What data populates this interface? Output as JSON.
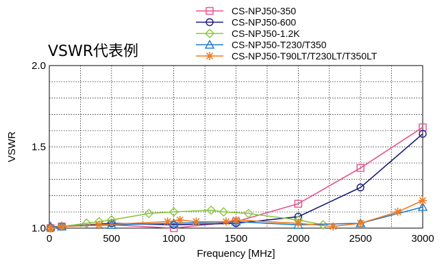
{
  "chart_data": {
    "type": "line",
    "title": "VSWR代表例",
    "xlabel": "Frequency [MHz]",
    "ylabel": "VSWR",
    "xlim": [
      0,
      3000
    ],
    "ylim": [
      1.0,
      2.0
    ],
    "x_ticks": [
      0,
      500,
      1000,
      1500,
      2000,
      2500,
      3000
    ],
    "y_ticks": [
      1.0,
      1.5,
      2.0
    ],
    "x_tick_labels": [
      "0",
      "500",
      "1000",
      "1500",
      "2000",
      "2500",
      "3000"
    ],
    "y_tick_labels": [
      "1.0",
      "1.5",
      "2.0"
    ],
    "grid": true,
    "legend_position": "top-right",
    "series": [
      {
        "name": "CS-NPJ50-350",
        "color": "#e8508a",
        "marker": "square",
        "x": [
          10,
          100,
          500,
          1000,
          1500,
          2000,
          2500,
          3000
        ],
        "y": [
          1.0,
          1.01,
          1.02,
          1.0,
          1.04,
          1.15,
          1.37,
          1.62
        ]
      },
      {
        "name": "CS-NPJ50-600",
        "color": "#1a1a7a",
        "marker": "circle",
        "x": [
          10,
          100,
          500,
          1000,
          1500,
          2000,
          2500,
          3000
        ],
        "y": [
          1.0,
          1.01,
          1.03,
          1.02,
          1.03,
          1.07,
          1.25,
          1.58
        ]
      },
      {
        "name": "CS-NPJ50-1.2K",
        "color": "#8cc63f",
        "marker": "diamond",
        "x": [
          10,
          100,
          300,
          400,
          500,
          800,
          1000,
          1300,
          1400,
          1600,
          2000,
          2200
        ],
        "y": [
          1.0,
          1.01,
          1.03,
          1.04,
          1.05,
          1.09,
          1.1,
          1.11,
          1.1,
          1.09,
          1.05,
          1.02
        ]
      },
      {
        "name": "CS-NPJ50-T230/T350",
        "color": "#1f78c8",
        "marker": "triangle",
        "x": [
          10,
          100,
          500,
          1000,
          1500,
          2000,
          2500,
          3000
        ],
        "y": [
          1.01,
          1.01,
          1.02,
          1.03,
          1.04,
          1.02,
          1.03,
          1.13
        ]
      },
      {
        "name": "CS-NPJ50-T90LT/T230LT/T350LT",
        "color": "#f07a1e",
        "marker": "asterisk",
        "x": [
          10,
          100,
          400,
          950,
          1050,
          1180,
          1420,
          1500,
          2000,
          2280,
          2500,
          2800,
          3000
        ],
        "y": [
          1.0,
          1.01,
          1.02,
          1.04,
          1.05,
          1.04,
          1.04,
          1.05,
          1.03,
          1.01,
          1.03,
          1.1,
          1.17
        ]
      }
    ]
  }
}
